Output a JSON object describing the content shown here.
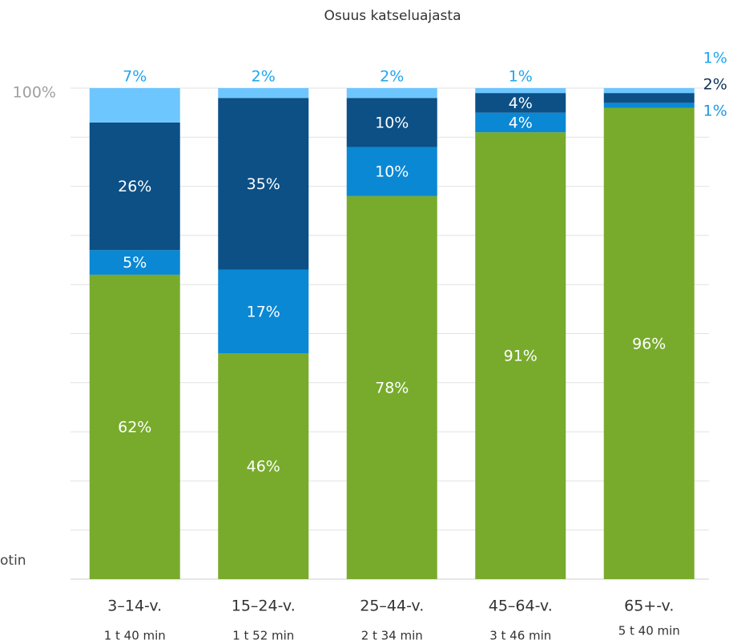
{
  "chart_data": {
    "type": "stacked_bar",
    "title": "Osuus katseluajasta",
    "annotation": "otin",
    "categories": [
      "3–14-v.",
      "15–24-v.",
      "25–44-v.",
      "45–64-v.",
      "65+-v."
    ],
    "sublabels": [
      "1 t 40 min",
      "1 t 52 min",
      "2 t 34 min",
      "3 t 46 min",
      "5 t 40 min"
    ],
    "series": [
      {
        "color": "#78ab2c",
        "values": [
          62,
          46,
          78,
          91,
          96
        ],
        "value_labels": [
          "62%",
          "46%",
          "78%",
          "91%",
          "96%"
        ]
      },
      {
        "color": "#0a88d4",
        "values": [
          5,
          17,
          10,
          4,
          1
        ],
        "value_labels": [
          "5%",
          "17%",
          "10%",
          "4%",
          "1%"
        ]
      },
      {
        "color": "#0c5086",
        "values": [
          26,
          35,
          10,
          4,
          2
        ],
        "value_labels": [
          "26%",
          "35%",
          "10%",
          "4%",
          "2%"
        ]
      },
      {
        "color": "#6ec6ff",
        "values": [
          7,
          2,
          2,
          1,
          1
        ],
        "value_labels": [
          "7%",
          "2%",
          "2%",
          "1%",
          "1%"
        ]
      }
    ],
    "ylim": [
      0,
      100
    ],
    "yticks": [
      {
        "value": 100,
        "label": "100%"
      }
    ],
    "gridlines": [
      0,
      10,
      20,
      30,
      40,
      50,
      60,
      70,
      80,
      90
    ],
    "grid": true
  }
}
